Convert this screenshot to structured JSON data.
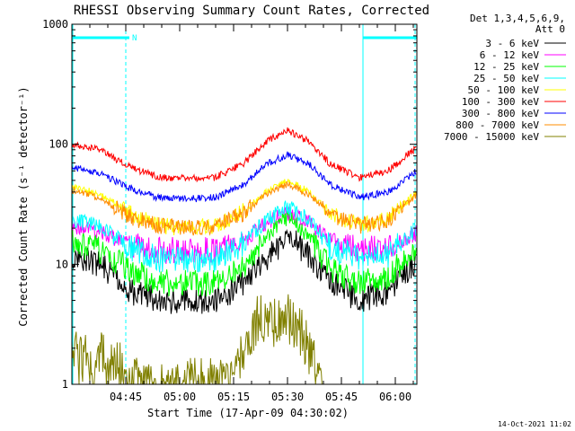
{
  "chart_data": {
    "type": "line",
    "title": "RHESSI Observing Summary Count Rates, Corrected",
    "xlabel": "Start Time (17-Apr-09 04:30:02)",
    "ylabel": "Corrected Count Rate (s⁻¹ detector⁻¹)",
    "y_scale": "log",
    "ylim": [
      1,
      1000
    ],
    "xlim_minutes_after_0430": [
      0,
      96
    ],
    "x_ticks": [
      {
        "label": "04:45",
        "minute": 15
      },
      {
        "label": "05:00",
        "minute": 30
      },
      {
        "label": "05:15",
        "minute": 45
      },
      {
        "label": "05:30",
        "minute": 60
      },
      {
        "label": "05:45",
        "minute": 75
      },
      {
        "label": "06:00",
        "minute": 90
      }
    ],
    "y_ticks": [
      {
        "label": "1",
        "value": 1
      },
      {
        "label": "10",
        "value": 10
      },
      {
        "label": "100",
        "value": 100
      },
      {
        "label": "1000",
        "value": 1000
      }
    ],
    "legend_position": "right",
    "legend_header": [
      "Det 1,3,4,5,6,9,",
      "Att 0"
    ],
    "series": [
      {
        "name": "3 - 6 keV",
        "color": "#000000",
        "night_level": 5,
        "x": [
          0,
          8,
          16,
          24,
          32,
          40,
          48,
          54,
          60,
          66,
          72,
          80,
          88,
          96
        ],
        "y": [
          12,
          10,
          6,
          5,
          5,
          5,
          7,
          11,
          17,
          12,
          7,
          5,
          6,
          11
        ]
      },
      {
        "name": "6 - 12 keV",
        "color": "#ff00ff",
        "night_level": 13,
        "x": [
          0,
          8,
          16,
          24,
          32,
          40,
          48,
          54,
          60,
          66,
          72,
          80,
          88,
          96
        ],
        "y": [
          20,
          18,
          15,
          13,
          13,
          13,
          16,
          22,
          27,
          22,
          16,
          13,
          14,
          18
        ]
      },
      {
        "name": "12 - 25 keV",
        "color": "#00ff00",
        "night_level": 7,
        "x": [
          0,
          8,
          16,
          24,
          32,
          40,
          48,
          54,
          60,
          66,
          72,
          80,
          88,
          96
        ],
        "y": [
          15,
          13,
          9,
          7,
          7,
          7,
          10,
          17,
          25,
          17,
          9,
          7,
          8,
          14
        ]
      },
      {
        "name": "25 - 50 keV",
        "color": "#00ffff",
        "night_level": 11,
        "x": [
          0,
          8,
          16,
          24,
          32,
          40,
          48,
          54,
          60,
          66,
          72,
          80,
          88,
          96
        ],
        "y": [
          24,
          20,
          14,
          11,
          11,
          11,
          15,
          23,
          30,
          23,
          14,
          11,
          12,
          20
        ]
      },
      {
        "name": "50 - 100 keV",
        "color": "#ffff00",
        "night_level": 20,
        "x": [
          0,
          8,
          16,
          24,
          32,
          40,
          48,
          54,
          60,
          66,
          72,
          80,
          88,
          96
        ],
        "y": [
          45,
          38,
          27,
          21,
          20,
          21,
          28,
          40,
          50,
          40,
          27,
          21,
          24,
          40
        ]
      },
      {
        "name": "100 - 300 keV",
        "color": "#ff0000",
        "night_level": 50,
        "x": [
          0,
          8,
          16,
          24,
          32,
          40,
          48,
          54,
          60,
          66,
          72,
          80,
          88,
          96
        ],
        "y": [
          100,
          90,
          65,
          53,
          52,
          53,
          70,
          105,
          130,
          105,
          68,
          53,
          60,
          95
        ]
      },
      {
        "name": "300 - 800 keV",
        "color": "#0000ff",
        "night_level": 35,
        "x": [
          0,
          8,
          16,
          24,
          32,
          40,
          48,
          54,
          60,
          66,
          72,
          80,
          88,
          96
        ],
        "y": [
          65,
          57,
          43,
          36,
          35,
          36,
          47,
          68,
          82,
          68,
          46,
          36,
          40,
          60
        ]
      },
      {
        "name": "800 - 7000 keV",
        "color": "#ff8c00",
        "night_level": 20,
        "x": [
          0,
          8,
          16,
          24,
          32,
          40,
          48,
          54,
          60,
          66,
          72,
          80,
          88,
          96
        ],
        "y": [
          42,
          35,
          25,
          21,
          20,
          21,
          27,
          38,
          47,
          38,
          26,
          21,
          23,
          38
        ]
      },
      {
        "name": "7000 - 15000 keV",
        "color": "#808000",
        "night_level": 1,
        "x": [
          0,
          2,
          4,
          6,
          8,
          10,
          12,
          14,
          16,
          18,
          20,
          44,
          46,
          48,
          50,
          52,
          54,
          56,
          58,
          60,
          62,
          64,
          66,
          68,
          70
        ],
        "y": [
          2,
          1.5,
          2,
          1.3,
          2,
          1.4,
          1.8,
          1.2,
          1,
          1,
          1,
          1,
          1.5,
          2,
          2.8,
          3.4,
          3.5,
          3.4,
          3.4,
          3.5,
          3.3,
          2.8,
          2,
          1.5,
          1
        ]
      }
    ],
    "status_bars": [
      {
        "label": "",
        "color": "#00ffff",
        "x": [
          0,
          15
        ]
      },
      {
        "label": "N",
        "color": "#00ffff",
        "x": [
          15,
          16
        ]
      },
      {
        "label": "",
        "color": "#00ffff",
        "x": [
          81,
          96
        ]
      }
    ],
    "dashed_markers_minutes": [
      15,
      96
    ],
    "solid_markers_minutes": [
      0,
      81
    ]
  },
  "footer": {
    "timestamp": "14-Oct-2021 11:02"
  }
}
